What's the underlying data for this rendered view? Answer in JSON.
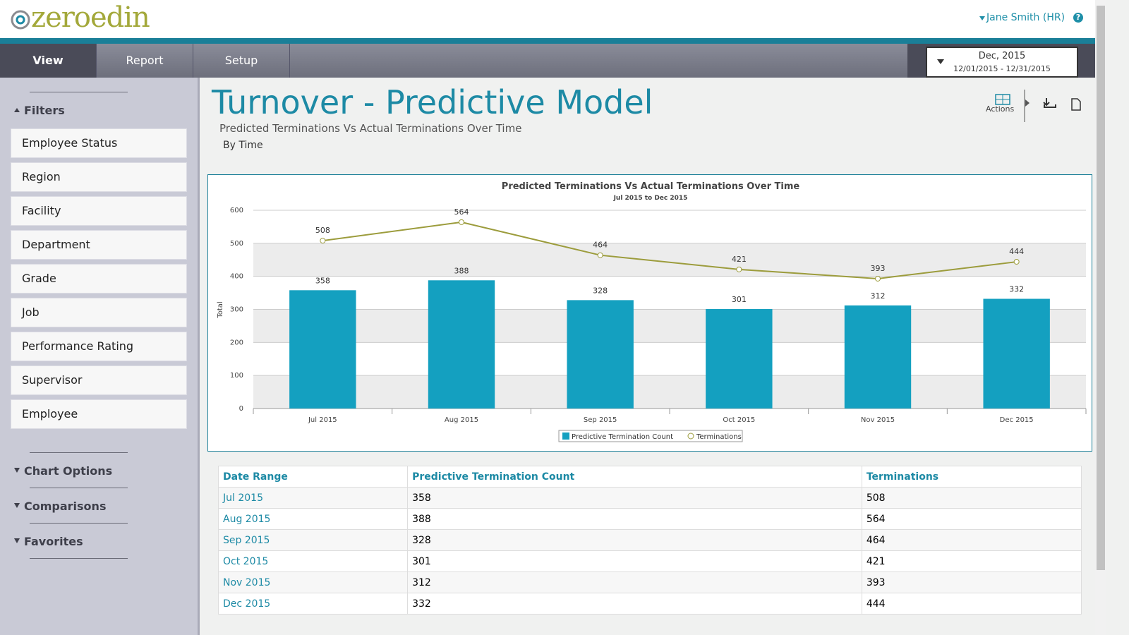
{
  "header": {
    "logo": "zeroedin",
    "user": "Jane Smith (HR)",
    "help": "?"
  },
  "nav": {
    "tabs": [
      "View",
      "Report",
      "Setup"
    ],
    "period": "Dec, 2015",
    "range": "12/01/2015 - 12/31/2015"
  },
  "sidebar": {
    "filters_title": "Filters",
    "filters": [
      "Employee Status",
      "Region",
      "Facility",
      "Department",
      "Grade",
      "Job",
      "Performance Rating",
      "Supervisor",
      "Employee"
    ],
    "sections": [
      "Chart Options",
      "Comparisons",
      "Favorites"
    ]
  },
  "page": {
    "title": "Turnover - Predictive Model",
    "subtitle": "Predicted Terminations Vs Actual Terminations Over Time",
    "group": "By Time",
    "actions": "Actions"
  },
  "chart_data": {
    "type": "bar",
    "title": "Predicted Terminations Vs Actual Terminations Over Time",
    "subtitle": "Jul 2015 to Dec 2015",
    "y_label": "Total",
    "categories": [
      "Jul 2015",
      "Aug 2015",
      "Sep 2015",
      "Oct 2015",
      "Nov 2015",
      "Dec 2015"
    ],
    "series": [
      {
        "name": "Predictive Termination Count",
        "type": "bar",
        "color": "#14a0c0",
        "values": [
          358,
          388,
          328,
          301,
          312,
          332
        ]
      },
      {
        "name": "Terminations",
        "type": "line",
        "color": "#9c9c3c",
        "values": [
          508,
          564,
          464,
          421,
          393,
          444
        ]
      }
    ],
    "ylim": [
      0,
      600
    ],
    "yticks": [
      0,
      100,
      200,
      300,
      400,
      500,
      600
    ],
    "grid": true
  },
  "table": {
    "headers": [
      "Date Range",
      "Predictive Termination Count",
      "Terminations"
    ],
    "rows": [
      [
        "Jul 2015",
        358,
        508
      ],
      [
        "Aug 2015",
        388,
        564
      ],
      [
        "Sep 2015",
        328,
        464
      ],
      [
        "Oct 2015",
        301,
        421
      ],
      [
        "Nov 2015",
        312,
        393
      ],
      [
        "Dec 2015",
        332,
        444
      ]
    ]
  }
}
